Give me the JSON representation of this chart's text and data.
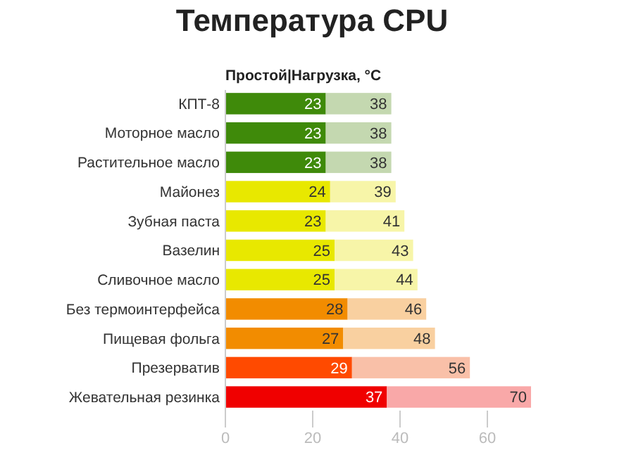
{
  "chart_data": {
    "type": "bar",
    "orientation": "horizontal",
    "stacked": true,
    "title": "Температура CPU",
    "subtitle": "Простой|Нагрузка, °C",
    "categories": [
      "КПТ-8",
      "Моторное масло",
      "Растительное масло",
      "Майонез",
      "Зубная паста",
      "Вазелин",
      "Сливочное масло",
      "Без термоинтерфейса",
      "Пищевая фольга",
      "Презерватив",
      "Жевательная резинка"
    ],
    "series": [
      {
        "values": [
          23,
          23,
          23,
          24,
          23,
          25,
          25,
          28,
          27,
          29,
          37
        ],
        "value_labels": [
          "23",
          "23",
          "23",
          "24",
          "23",
          "25",
          "25",
          "28",
          "27",
          "29",
          "37"
        ],
        "colors": [
          "#3f8a0a",
          "#3f8a0a",
          "#3f8a0a",
          "#e8e800",
          "#e8e800",
          "#e8e800",
          "#e8e800",
          "#f28c00",
          "#f28c00",
          "#ff4a00",
          "#f00000"
        ]
      },
      {
        "values": [
          15,
          15,
          15,
          15,
          18,
          18,
          19,
          18,
          21,
          27,
          33
        ],
        "colors": [
          "#c4d8b0",
          "#c4d8b0",
          "#c4d8b0",
          "#f7f5a8",
          "#f7f5a8",
          "#f7f5a8",
          "#f7f5a8",
          "#f9d0a0",
          "#f9d0a0",
          "#f9c0a8",
          "#f9a8a8"
        ]
      }
    ],
    "totals": [
      "38",
      "38",
      "38",
      "39",
      "41",
      "43",
      "44",
      "46",
      "48",
      "56",
      "70"
    ],
    "xlim": [
      0,
      70
    ],
    "xticks": [
      0,
      20,
      40,
      60
    ]
  }
}
